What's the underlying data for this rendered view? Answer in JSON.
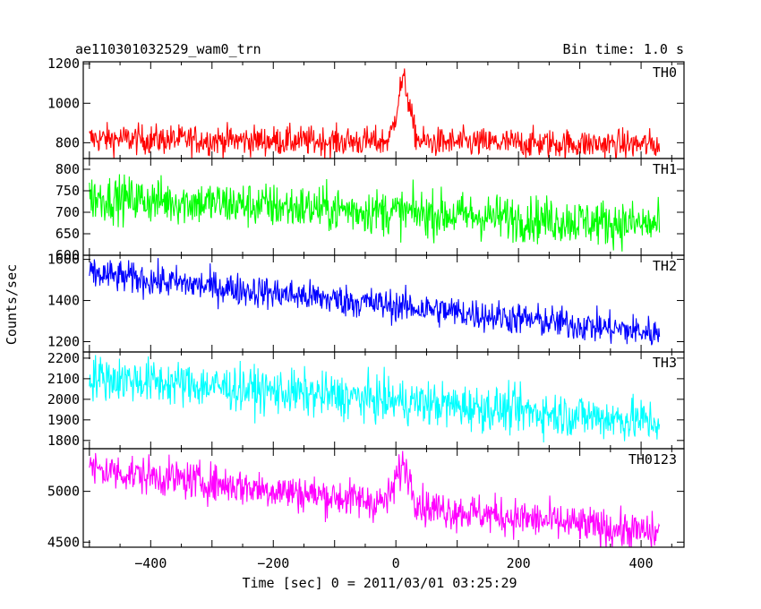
{
  "header": {
    "title": "ae110301032529_wam0_trn",
    "bin_time": "Bin time: 1.0 s"
  },
  "chart_data": {
    "type": "line",
    "title": "ae110301032529_wam0_trn",
    "ylabel": "Counts/sec",
    "xlabel": "Time [sec] 0 = 2011/03/01 03:25:29",
    "xlim": [
      -510,
      470
    ],
    "x_ticks": [
      -400,
      -200,
      0,
      200,
      400
    ],
    "x_tick_labels": [
      "−400",
      "−200",
      "0",
      "200",
      "400"
    ],
    "x_range": [
      -500,
      430
    ],
    "grid": false,
    "panels": [
      {
        "name": "TH0",
        "color": "#ff0000",
        "ylim": [
          720,
          1210
        ],
        "y_ticks": [
          800,
          1000,
          1200
        ],
        "y_tick_labels": [
          "800",
          "1000",
          "1200"
        ],
        "baseline": [
          [
            -500,
            820
          ],
          [
            430,
            790
          ]
        ],
        "noise": 38,
        "peak": {
          "x": 12,
          "value": 1210,
          "width": 10
        }
      },
      {
        "name": "TH1",
        "color": "#00ff00",
        "ylim": [
          600,
          825
        ],
        "y_ticks": [
          600,
          650,
          700,
          750,
          800
        ],
        "y_tick_labels": [
          "600",
          "650",
          "700",
          "750",
          "800"
        ],
        "baseline": [
          [
            -500,
            735
          ],
          [
            430,
            670
          ]
        ],
        "noise": 27,
        "peak": null
      },
      {
        "name": "TH2",
        "color": "#0000ff",
        "ylim": [
          1150,
          1620
        ],
        "y_ticks": [
          1200,
          1400,
          1600
        ],
        "y_tick_labels": [
          "1200",
          "1400",
          "1600"
        ],
        "baseline": [
          [
            -500,
            1530
          ],
          [
            430,
            1240
          ]
        ],
        "noise": 40,
        "peak": null
      },
      {
        "name": "TH3",
        "color": "#00ffff",
        "ylim": [
          1760,
          2230
        ],
        "y_ticks": [
          1800,
          1900,
          2000,
          2100,
          2200
        ],
        "y_tick_labels": [
          "1800",
          "1900",
          "2000",
          "2100",
          "2200"
        ],
        "baseline": [
          [
            -500,
            2110
          ],
          [
            430,
            1890
          ]
        ],
        "noise": 55,
        "peak": null
      },
      {
        "name": "TH0123",
        "color": "#ff00ff",
        "ylim": [
          4450,
          5420
        ],
        "y_ticks": [
          4500,
          5000
        ],
        "y_tick_labels": [
          "4500",
          "5000"
        ],
        "baseline": [
          [
            -500,
            5220
          ],
          [
            430,
            4580
          ]
        ],
        "noise": 95,
        "peak": {
          "x": 12,
          "value": 5380,
          "width": 12
        }
      }
    ]
  }
}
